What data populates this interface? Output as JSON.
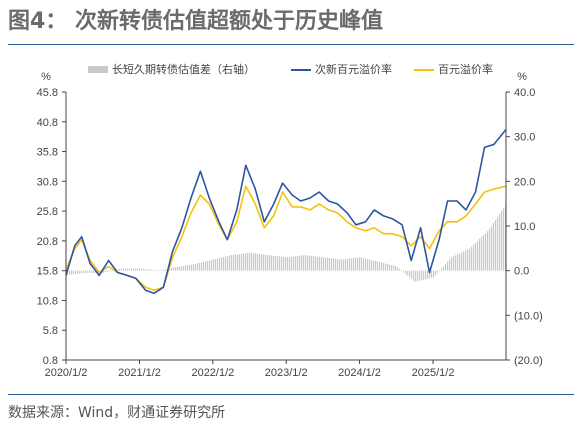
{
  "title": "图4：  次新转债估值超额处于历史峰值",
  "source": "数据来源：Wind，财通证券研究所",
  "chart_data": {
    "type": "line",
    "left_axis_unit": "%",
    "right_axis_unit": "%",
    "left_ylim": [
      0.8,
      45.8
    ],
    "left_ticks": [
      "45.8",
      "40.8",
      "35.8",
      "30.8",
      "25.8",
      "20.8",
      "15.8",
      "10.8",
      "5.8",
      "0.8"
    ],
    "right_ylim": [
      -20,
      40
    ],
    "right_ticks": [
      "40.0",
      "30.0",
      "20.0",
      "10.0",
      "0.0",
      "(10.0)",
      "(20.0)"
    ],
    "x_ticks": [
      "2020/1/2",
      "2021/1/2",
      "2022/1/2",
      "2023/1/2",
      "2024/1/2",
      "2025/1/2"
    ],
    "x_range": [
      "2020-01-02",
      "2025-12-31"
    ],
    "legend": [
      "长短久期转债估值差（右轴）",
      "次新百元溢价率",
      "百元溢价率"
    ],
    "colors": {
      "diff": "#c9c9c9",
      "new": "#2e55a3",
      "all": "#f4c20d",
      "negative_tick": "#e0322e"
    },
    "series": [
      {
        "name": "次新百元溢价率",
        "axis": "left",
        "x": [
          "2020-01-02",
          "2020-02-15",
          "2020-03-20",
          "2020-05-01",
          "2020-06-15",
          "2020-08-01",
          "2020-09-15",
          "2020-11-01",
          "2020-12-15",
          "2021-02-01",
          "2021-03-15",
          "2021-05-01",
          "2021-06-15",
          "2021-08-01",
          "2021-09-15",
          "2021-11-01",
          "2021-12-15",
          "2022-02-01",
          "2022-03-15",
          "2022-05-01",
          "2022-06-15",
          "2022-08-01",
          "2022-09-15",
          "2022-11-01",
          "2022-12-15",
          "2023-02-01",
          "2023-03-15",
          "2023-05-01",
          "2023-06-15",
          "2023-08-01",
          "2023-09-15",
          "2023-11-01",
          "2023-12-15",
          "2024-02-01",
          "2024-03-15",
          "2024-05-01",
          "2024-06-15",
          "2024-08-01",
          "2024-09-15",
          "2024-11-01",
          "2024-12-15",
          "2025-02-01",
          "2025-03-15",
          "2025-05-01",
          "2025-06-15",
          "2025-08-01",
          "2025-09-15",
          "2025-11-01",
          "2025-12-31"
        ],
        "values": [
          15.0,
          20.0,
          21.5,
          17.0,
          15.0,
          17.5,
          15.5,
          15.0,
          14.5,
          12.5,
          12.0,
          13.0,
          19.0,
          23.0,
          28.0,
          32.5,
          28.0,
          24.0,
          21.0,
          26.0,
          33.5,
          29.5,
          24.0,
          27.0,
          30.5,
          28.5,
          27.5,
          28.0,
          29.0,
          27.5,
          27.0,
          25.5,
          23.5,
          24.0,
          26.0,
          25.0,
          24.5,
          23.5,
          17.5,
          23.0,
          15.5,
          21.0,
          27.5,
          27.5,
          26.0,
          29.0,
          36.5,
          37.0,
          39.5
        ]
      },
      {
        "name": "百元溢价率",
        "axis": "left",
        "x": [
          "2020-01-02",
          "2020-02-15",
          "2020-03-20",
          "2020-05-01",
          "2020-06-15",
          "2020-08-01",
          "2020-09-15",
          "2020-11-01",
          "2020-12-15",
          "2021-02-01",
          "2021-03-15",
          "2021-05-01",
          "2021-06-15",
          "2021-08-01",
          "2021-09-15",
          "2021-11-01",
          "2021-12-15",
          "2022-02-01",
          "2022-03-15",
          "2022-05-01",
          "2022-06-15",
          "2022-08-01",
          "2022-09-15",
          "2022-11-01",
          "2022-12-15",
          "2023-02-01",
          "2023-03-15",
          "2023-05-01",
          "2023-06-15",
          "2023-08-01",
          "2023-09-15",
          "2023-11-01",
          "2023-12-15",
          "2024-02-01",
          "2024-03-15",
          "2024-05-01",
          "2024-06-15",
          "2024-08-01",
          "2024-09-15",
          "2024-11-01",
          "2024-12-15",
          "2025-02-01",
          "2025-03-15",
          "2025-05-01",
          "2025-06-15",
          "2025-08-01",
          "2025-09-15",
          "2025-11-01",
          "2025-12-31"
        ],
        "values": [
          16.0,
          19.5,
          21.0,
          17.5,
          15.5,
          16.5,
          15.5,
          15.0,
          14.5,
          13.0,
          12.5,
          13.0,
          18.0,
          21.5,
          25.5,
          28.5,
          27.0,
          23.5,
          21.0,
          24.0,
          30.0,
          27.0,
          23.0,
          25.0,
          29.0,
          26.5,
          26.5,
          26.0,
          27.0,
          26.0,
          25.5,
          24.0,
          23.0,
          22.5,
          23.0,
          22.0,
          22.0,
          21.5,
          20.0,
          21.5,
          19.5,
          22.5,
          24.0,
          24.0,
          25.0,
          27.0,
          29.0,
          29.5,
          30.0
        ]
      },
      {
        "name": "长短久期转债估值差（右轴）",
        "axis": "right",
        "x": [
          "2020-01-02",
          "2020-04-01",
          "2020-07-01",
          "2020-10-01",
          "2021-01-01",
          "2021-04-01",
          "2021-07-01",
          "2021-10-01",
          "2022-01-01",
          "2022-04-01",
          "2022-07-01",
          "2022-10-01",
          "2023-01-01",
          "2023-04-01",
          "2023-07-01",
          "2023-10-01",
          "2024-01-01",
          "2024-04-01",
          "2024-07-01",
          "2024-10-01",
          "2025-01-01",
          "2025-04-01",
          "2025-07-01",
          "2025-10-01",
          "2025-12-31"
        ],
        "values": [
          -1.0,
          -0.5,
          -0.5,
          0.5,
          0.5,
          0.0,
          0.8,
          1.5,
          2.5,
          3.5,
          4.0,
          3.5,
          3.0,
          3.5,
          3.0,
          2.5,
          3.0,
          2.0,
          1.0,
          -2.5,
          -1.5,
          3.0,
          5.0,
          9.0,
          15.0
        ]
      }
    ]
  }
}
